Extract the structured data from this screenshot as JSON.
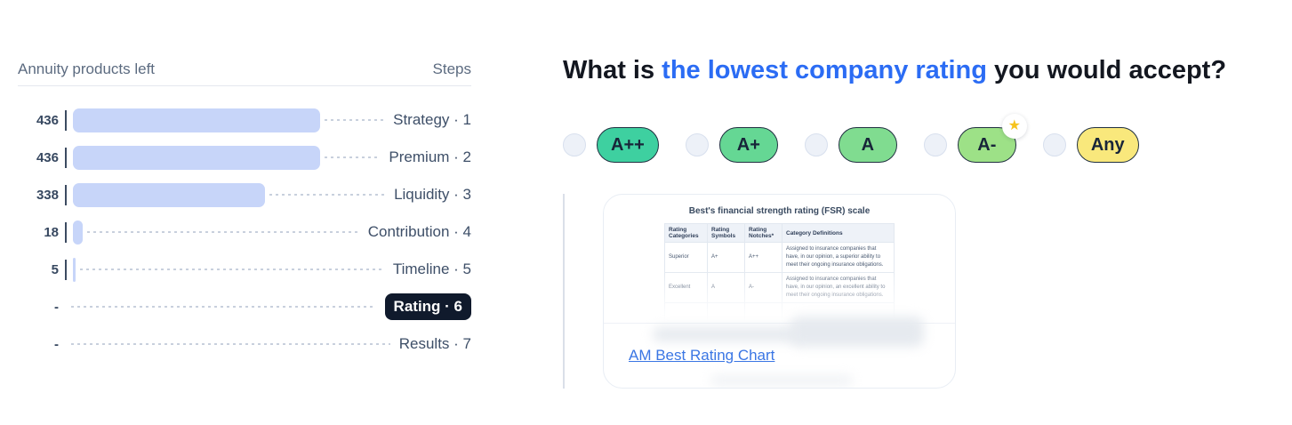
{
  "left_panel": {
    "header": {
      "title": "Annuity products left",
      "right": "Steps"
    },
    "max_value": 436,
    "rows": [
      {
        "value": "436",
        "bar": 436,
        "label": "Strategy · 1",
        "active": false
      },
      {
        "value": "436",
        "bar": 436,
        "label": "Premium · 2",
        "active": false
      },
      {
        "value": "338",
        "bar": 338,
        "label": "Liquidity · 3",
        "active": false
      },
      {
        "value": "18",
        "bar": 18,
        "label": "Contribution · 4",
        "active": false
      },
      {
        "value": "5",
        "bar": 5,
        "label": "Timeline · 5",
        "active": false
      },
      {
        "value": "-",
        "bar": 0,
        "label": "Rating · 6",
        "active": true
      },
      {
        "value": "-",
        "bar": 0,
        "label": "Results · 7",
        "active": false
      }
    ],
    "colors": {
      "bar": "#c7d5f9",
      "active_badge_bg": "#101a2c",
      "active_badge_text": "#ffffff"
    }
  },
  "question": {
    "prefix": "What is ",
    "highlight": "the lowest company rating",
    "suffix": " you would accept?",
    "highlight_color": "#2b6cf4"
  },
  "options": [
    {
      "label": "A++",
      "color": "#3ed0a0",
      "starred": false
    },
    {
      "label": "A+",
      "color": "#65d794",
      "starred": false
    },
    {
      "label": "A",
      "color": "#80dc90",
      "starred": false
    },
    {
      "label": "A-",
      "color": "#9de187",
      "starred": true
    },
    {
      "label": "Any",
      "color": "#f9e87c",
      "starred": false
    }
  ],
  "star_icon": "★",
  "card": {
    "image_title": "Best's financial strength rating (FSR) scale",
    "table": {
      "headers": [
        "Rating Categories",
        "Rating Symbols",
        "Rating Notches*",
        "Category Definitions"
      ],
      "rows": [
        [
          "Superior",
          "A+",
          "A++",
          "Assigned to insurance companies that have, in our opinion, a superior ability to meet their ongoing insurance obligations."
        ],
        [
          "Excellent",
          "A",
          "A-",
          "Assigned to insurance companies that have, in our opinion, an excellent ability to meet their ongoing insurance obligations."
        ]
      ]
    },
    "link_label": "AM Best Rating Chart"
  }
}
